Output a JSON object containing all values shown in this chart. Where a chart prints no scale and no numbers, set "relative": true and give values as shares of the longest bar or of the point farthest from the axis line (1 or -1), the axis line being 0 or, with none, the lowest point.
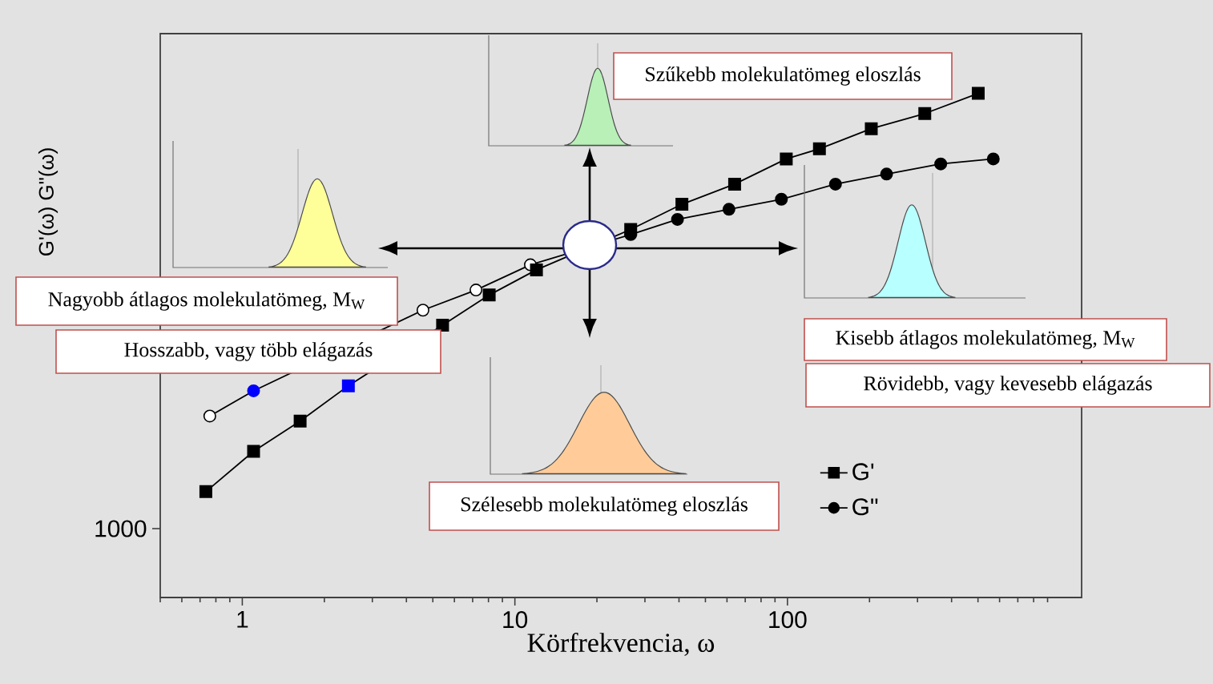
{
  "chart_data": {
    "type": "line",
    "xlabel": "Körfrekvencia, ω",
    "ylabel": "G'(ω) G\"(ω)",
    "log": "x",
    "relative": true,
    "xlim": [
      0.5,
      1200
    ],
    "xticks": [
      1,
      10,
      100
    ],
    "legend": "bottom right",
    "series": [
      {
        "name": "G'",
        "marker": "square",
        "color": "#000000",
        "x": [
          0.735,
          1.1,
          1.63,
          2.45,
          5.43,
          8.05,
          12,
          26.6,
          41,
          64,
          99,
          131,
          203,
          319,
          501
        ],
        "values": [
          0.21,
          0.29,
          0.35,
          0.42,
          0.54,
          0.6,
          0.65,
          0.73,
          0.78,
          0.82,
          0.87,
          0.89,
          0.93,
          0.96,
          1
        ],
        "colors": [
          "#000000",
          "#000000",
          "#000000",
          "#0000ff",
          "#000000",
          "#000000",
          "#000000",
          "#000000",
          "#000000",
          "#000000",
          "#000000",
          "#000000",
          "#000000",
          "#000000",
          "#000000"
        ]
      },
      {
        "name": "G\"",
        "marker": "circle",
        "color": "#000000",
        "x": [
          0.76,
          1.1,
          4.6,
          7.2,
          11.4,
          26.6,
          39.5,
          61,
          95,
          150,
          231,
          365,
          569
        ],
        "values": [
          0.36,
          0.41,
          0.57,
          0.61,
          0.66,
          0.72,
          0.75,
          0.77,
          0.79,
          0.82,
          0.84,
          0.86,
          0.87
        ],
        "colors": [
          "#ffffff",
          "#0000ff",
          "#ffffff",
          "#ffffff",
          "#ffffff",
          "#000000",
          "#000000",
          "#000000",
          "#000000",
          "#000000",
          "#000000",
          "#000000",
          "#000000"
        ]
      }
    ],
    "annotations": [
      "1000",
      "Szűkebb molekulatömeg eloszlás",
      "Nagyobb átlagos molekulatömeg, M$_{W}$",
      "Hosszabb, vagy több elágazás",
      "Kisebb átlagos molekulatömeg, M$_{W}$",
      "Rövidebb, vagy kevesebb elágazás",
      "Szélesebb molekulatömeg eloszlás"
    ]
  }
}
